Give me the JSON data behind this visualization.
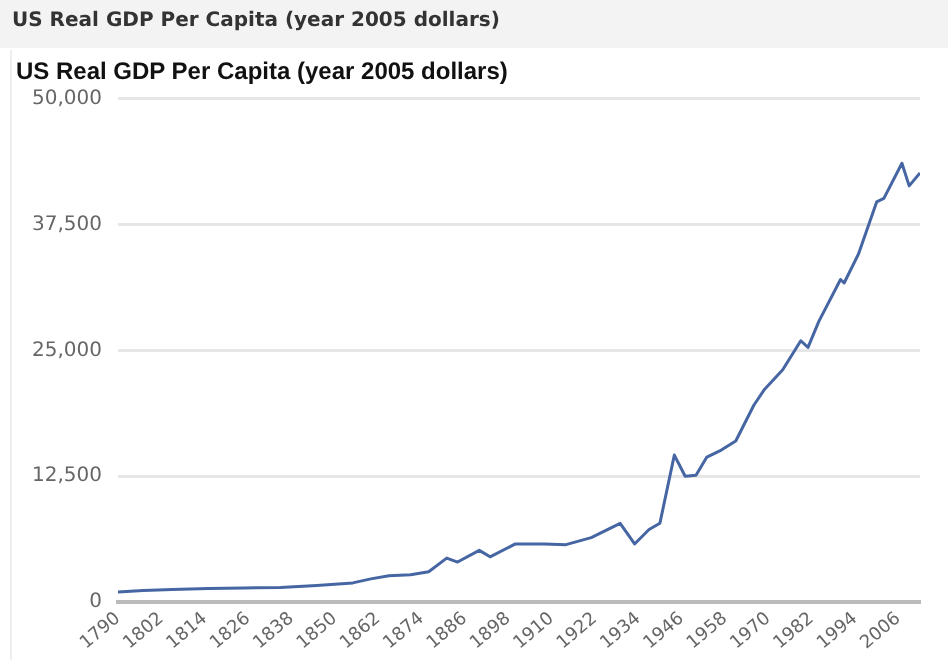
{
  "chart_data": {
    "type": "line",
    "title": "US Real GDP Per Capita (year 2005 dollars)",
    "subtitle": "US Real GDP Per Capita (year 2005 dollars)",
    "x": [
      1790,
      1797,
      1805,
      1815,
      1825,
      1835,
      1845,
      1855,
      1860,
      1865,
      1871,
      1876,
      1881,
      1884,
      1890,
      1893,
      1900,
      1908,
      1914,
      1921,
      1929,
      1933,
      1937,
      1940,
      1944,
      1947,
      1950,
      1953,
      1957,
      1961,
      1966,
      1969,
      1974,
      1979,
      1981,
      1984,
      1990,
      1991,
      1995,
      2000,
      2002,
      2007,
      2009,
      2012
    ],
    "series": [
      {
        "color": "#4666a3",
        "values": [
          1000,
          1150,
          1250,
          1350,
          1400,
          1450,
          1650,
          1900,
          2300,
          2600,
          2700,
          3000,
          4360,
          3970,
          5130,
          4490,
          5770,
          5770,
          5700,
          6400,
          7820,
          5770,
          7200,
          7820,
          14600,
          12500,
          12600,
          14400,
          15100,
          16000,
          19550,
          21150,
          23080,
          25960,
          25300,
          27880,
          32050,
          31700,
          34600,
          39750,
          40100,
          43600,
          41350,
          42630
        ]
      }
    ],
    "xlim": [
      1790,
      2012
    ],
    "xticks": [
      1790,
      1802,
      1814,
      1826,
      1838,
      1850,
      1862,
      1874,
      1886,
      1898,
      1910,
      1922,
      1934,
      1946,
      1958,
      1970,
      1982,
      1994,
      2006
    ],
    "ylim": [
      0,
      50000
    ],
    "yticks": [
      {
        "value": 0,
        "label": "0"
      },
      {
        "value": 12500,
        "label": "12,500"
      },
      {
        "value": 25000,
        "label": "25,000"
      },
      {
        "value": 37500,
        "label": "37,500"
      },
      {
        "value": 50000,
        "label": "50,000"
      }
    ],
    "grid": "y",
    "legend": false,
    "marker": "none",
    "line_style": "solid"
  }
}
